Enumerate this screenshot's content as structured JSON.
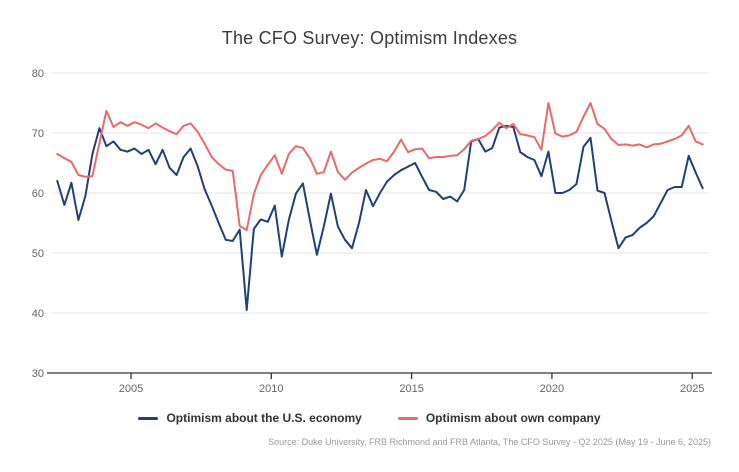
{
  "header": {
    "title": "The CFO Survey: Optimism Indexes"
  },
  "footer": {
    "source": "Source: Duke University, FRB Richmond and FRB Atlanta, The CFO Survey - Q2 2025 (May 19 - June 6, 2025)"
  },
  "colors": {
    "economy_line": "#20407a",
    "company_line": "#e96a68",
    "grid": "#e6e6e6",
    "axis_line": "#333333",
    "axis_label": "#666666",
    "title_text": "#3c3c3c",
    "source_text": "#999999",
    "menu_icon": "#666666"
  },
  "chart_data": {
    "type": "line",
    "title": "The CFO Survey: Optimism Indexes",
    "xlabel": "",
    "ylabel": "",
    "ylim": [
      30,
      80
    ],
    "yticks": [
      30,
      40,
      50,
      60,
      70,
      80
    ],
    "xticks": [
      2005,
      2010,
      2015,
      2020,
      2025
    ],
    "grid": "horizontal",
    "legend_position": "bottom-center",
    "x": [
      "2002 Q2",
      "2002 Q3",
      "2002 Q4",
      "2003 Q1",
      "2003 Q2",
      "2003 Q3",
      "2003 Q4",
      "2004 Q1",
      "2004 Q2",
      "2004 Q3",
      "2004 Q4",
      "2005 Q1",
      "2005 Q2",
      "2005 Q3",
      "2005 Q4",
      "2006 Q1",
      "2006 Q2",
      "2006 Q3",
      "2006 Q4",
      "2007 Q1",
      "2007 Q2",
      "2007 Q3",
      "2007 Q4",
      "2008 Q1",
      "2008 Q2",
      "2008 Q3",
      "2008 Q4",
      "2009 Q1",
      "2009 Q2",
      "2009 Q3",
      "2009 Q4",
      "2010 Q1",
      "2010 Q2",
      "2010 Q3",
      "2010 Q4",
      "2011 Q1",
      "2011 Q2",
      "2011 Q3",
      "2011 Q4",
      "2012 Q1",
      "2012 Q2",
      "2012 Q3",
      "2012 Q4",
      "2013 Q1",
      "2013 Q2",
      "2013 Q3",
      "2013 Q4",
      "2014 Q1",
      "2014 Q2",
      "2014 Q3",
      "2014 Q4",
      "2015 Q1",
      "2015 Q2",
      "2015 Q3",
      "2015 Q4",
      "2016 Q1",
      "2016 Q2",
      "2016 Q3",
      "2016 Q4",
      "2017 Q1",
      "2017 Q2",
      "2017 Q3",
      "2017 Q4",
      "2018 Q1",
      "2018 Q2",
      "2018 Q3",
      "2018 Q4",
      "2019 Q1",
      "2019 Q2",
      "2019 Q3",
      "2019 Q4",
      "2020 Q1",
      "2020 Q2",
      "2020 Q3",
      "2020 Q4",
      "2021 Q1",
      "2021 Q2",
      "2021 Q3",
      "2021 Q4",
      "2022 Q1",
      "2022 Q2",
      "2022 Q3",
      "2022 Q4",
      "2023 Q1",
      "2023 Q2",
      "2023 Q3",
      "2023 Q4",
      "2024 Q1",
      "2024 Q2",
      "2024 Q3",
      "2024 Q4",
      "2025 Q1",
      "2025 Q2"
    ],
    "series": [
      {
        "name": "Optimism about the U.S. economy",
        "color": "#20407a",
        "values": [
          62.0,
          58.0,
          61.7,
          55.5,
          59.5,
          66.5,
          70.8,
          67.8,
          68.6,
          67.2,
          66.9,
          67.4,
          66.5,
          67.2,
          64.8,
          67.2,
          64.2,
          63.0,
          66.0,
          67.4,
          64.5,
          60.6,
          57.9,
          55.0,
          52.2,
          52.0,
          53.9,
          40.5,
          54.0,
          55.6,
          55.2,
          57.9,
          49.4,
          55.5,
          59.9,
          61.6,
          55.5,
          49.7,
          54.5,
          59.9,
          54.4,
          52.2,
          50.8,
          55.0,
          60.5,
          57.8,
          60.0,
          61.9,
          63.0,
          63.8,
          64.4,
          65.0,
          62.7,
          60.5,
          60.2,
          59.0,
          59.4,
          58.6,
          60.5,
          68.6,
          69.0,
          66.9,
          67.5,
          70.9,
          71.2,
          71.0,
          66.8,
          66.0,
          65.5,
          62.8,
          66.9,
          60.0,
          60.0,
          60.5,
          61.5,
          67.7,
          69.2,
          60.4,
          60.0,
          55.3,
          50.8,
          52.6,
          53.0,
          54.2,
          55.0,
          56.1,
          58.3,
          60.5,
          61.0,
          61.0,
          66.2,
          63.4,
          60.8
        ]
      },
      {
        "name": "Optimism about own company",
        "color": "#e96a68",
        "values": [
          66.5,
          65.8,
          65.2,
          63.0,
          62.7,
          62.8,
          68.3,
          73.7,
          71.0,
          71.8,
          71.2,
          71.8,
          71.4,
          70.8,
          71.6,
          70.9,
          70.3,
          69.8,
          71.2,
          71.6,
          70.2,
          68.2,
          66.0,
          64.8,
          63.9,
          63.7,
          54.5,
          53.8,
          59.8,
          63.0,
          64.7,
          66.3,
          63.2,
          66.5,
          67.8,
          67.5,
          65.8,
          63.2,
          63.5,
          66.9,
          63.5,
          62.2,
          63.4,
          64.2,
          64.9,
          65.5,
          65.7,
          65.3,
          66.9,
          68.9,
          66.8,
          67.3,
          67.4,
          65.8,
          66.0,
          66.0,
          66.2,
          66.3,
          67.3,
          68.7,
          69.0,
          69.5,
          70.5,
          71.7,
          70.8,
          71.5,
          69.8,
          69.6,
          69.3,
          67.2,
          75.0,
          69.9,
          69.4,
          69.6,
          70.2,
          72.7,
          75.0,
          71.5,
          70.7,
          69.0,
          68.0,
          68.1,
          67.9,
          68.1,
          67.6,
          68.1,
          68.2,
          68.6,
          69.0,
          69.6,
          71.2,
          68.6,
          68.1
        ]
      }
    ]
  }
}
